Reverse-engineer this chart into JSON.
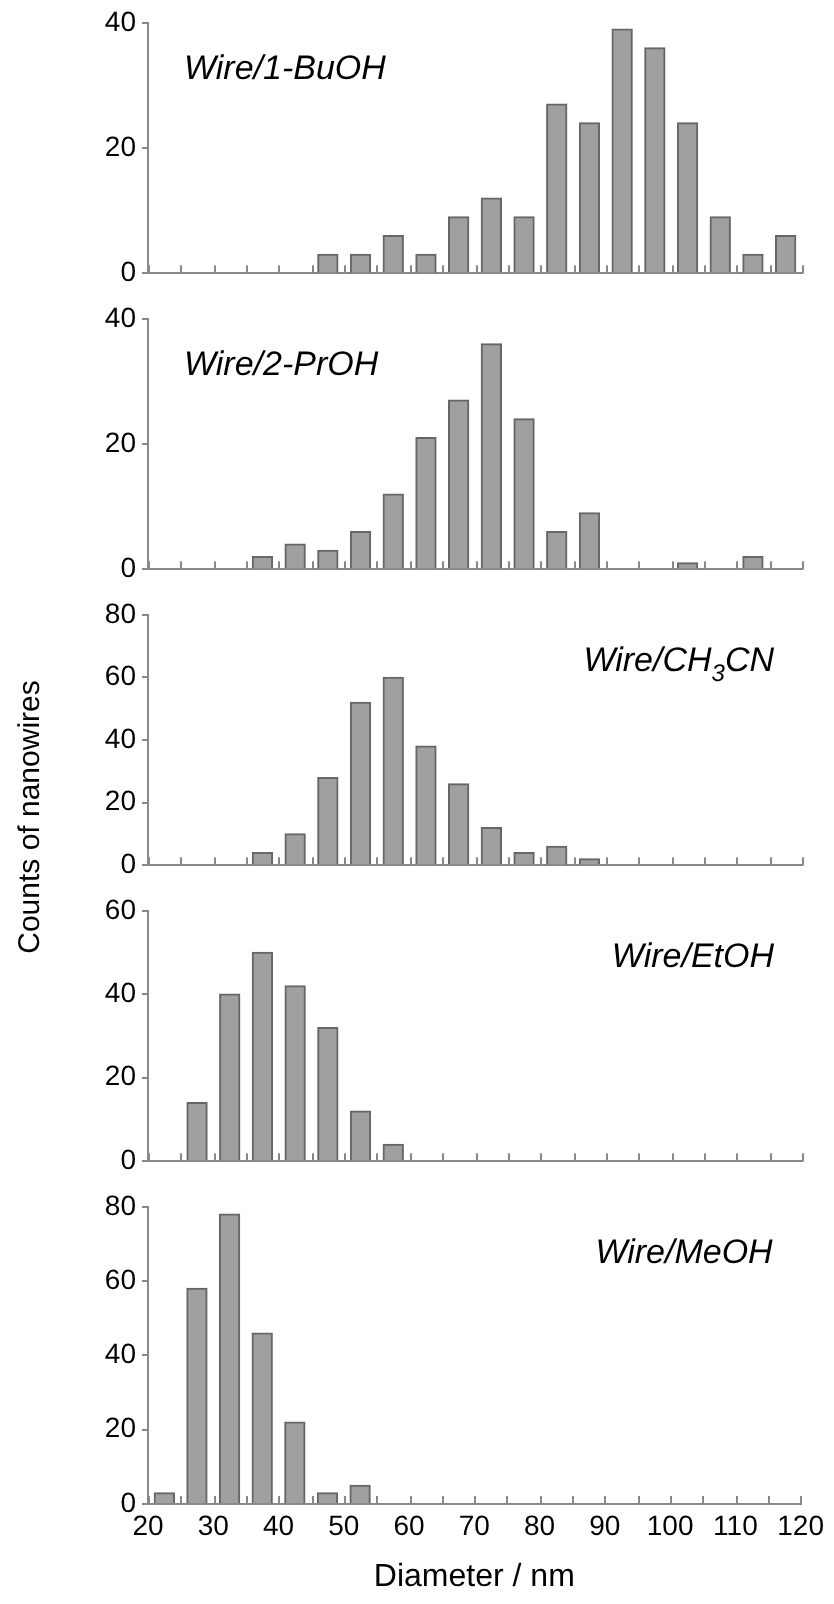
{
  "chart_data": [
    {
      "type": "histogram",
      "title": "Wire/1-BuOH",
      "bins": [
        20,
        25,
        30,
        35,
        40,
        45,
        50,
        55,
        60,
        65,
        70,
        75,
        80,
        85,
        90,
        95,
        100,
        105,
        110,
        115,
        120
      ],
      "values": [
        0,
        0,
        0,
        0,
        0,
        3,
        3,
        6,
        3,
        9,
        12,
        9,
        27,
        24,
        39,
        36,
        24,
        9,
        3,
        6
      ],
      "color": "#a0a0a0",
      "xlim": [
        20,
        120
      ],
      "xticks": [
        20,
        {
          "value": 25,
          "label": null
        },
        30,
        {
          "value": 35,
          "label": null
        },
        40,
        {
          "value": 45,
          "label": null
        },
        50,
        {
          "value": 55,
          "label": null
        },
        60,
        {
          "value": 65,
          "label": null
        },
        70,
        {
          "value": 75,
          "label": null
        },
        80,
        {
          "value": 85,
          "label": null
        },
        90,
        {
          "value": 95,
          "label": null
        },
        100,
        {
          "value": 105,
          "label": null
        },
        110,
        {
          "value": 115,
          "label": null
        },
        120
      ],
      "ylim": [
        0,
        40
      ],
      "yticks": [
        0,
        20,
        40
      ],
      "grid": false,
      "tick_labels": "y"
    },
    {
      "type": "histogram",
      "title": "Wire/2-PrOH",
      "bins": [
        20,
        25,
        30,
        35,
        40,
        45,
        50,
        55,
        60,
        65,
        70,
        75,
        80,
        85,
        90,
        95,
        100,
        105,
        110,
        115,
        120
      ],
      "values": [
        0,
        0,
        0,
        2,
        4,
        3,
        6,
        12,
        21,
        27,
        36,
        24,
        6,
        9,
        0,
        0,
        1,
        0,
        2,
        0
      ],
      "color": "#a0a0a0",
      "xlim": [
        20,
        120
      ],
      "xticks": [
        20,
        {
          "value": 25,
          "label": null
        },
        30,
        {
          "value": 35,
          "label": null
        },
        40,
        {
          "value": 45,
          "label": null
        },
        50,
        {
          "value": 55,
          "label": null
        },
        60,
        {
          "value": 65,
          "label": null
        },
        70,
        {
          "value": 75,
          "label": null
        },
        80,
        {
          "value": 85,
          "label": null
        },
        90,
        {
          "value": 95,
          "label": null
        },
        100,
        {
          "value": 105,
          "label": null
        },
        110,
        {
          "value": 115,
          "label": null
        },
        120
      ],
      "ylim": [
        0,
        40
      ],
      "yticks": [
        0,
        20,
        40
      ],
      "grid": false,
      "tick_labels": "y"
    },
    {
      "type": "histogram",
      "title": "Wire/CH$_{3}$CN",
      "ylabel": "Counts of nanowires",
      "bins": [
        20,
        25,
        30,
        35,
        40,
        45,
        50,
        55,
        60,
        65,
        70,
        75,
        80,
        85,
        90,
        95,
        100,
        105,
        110,
        115,
        120
      ],
      "values": [
        0,
        0,
        0,
        4,
        10,
        28,
        52,
        60,
        38,
        26,
        12,
        4,
        6,
        2,
        0,
        0,
        0,
        0,
        0,
        0
      ],
      "color": "#a0a0a0",
      "xlim": [
        20,
        120
      ],
      "xticks": [
        20,
        {
          "value": 25,
          "label": null
        },
        30,
        {
          "value": 35,
          "label": null
        },
        40,
        {
          "value": 45,
          "label": null
        },
        50,
        {
          "value": 55,
          "label": null
        },
        60,
        {
          "value": 65,
          "label": null
        },
        70,
        {
          "value": 75,
          "label": null
        },
        80,
        {
          "value": 85,
          "label": null
        },
        90,
        {
          "value": 95,
          "label": null
        },
        100,
        {
          "value": 105,
          "label": null
        },
        110,
        {
          "value": 115,
          "label": null
        },
        120
      ],
      "ylim": [
        0,
        80
      ],
      "yticks": [
        0,
        20,
        40,
        60,
        80
      ],
      "grid": false,
      "tick_labels": "y"
    },
    {
      "type": "histogram",
      "title": "Wire/EtOH",
      "bins": [
        20,
        25,
        30,
        35,
        40,
        45,
        50,
        55,
        60,
        65,
        70,
        75,
        80,
        85,
        90,
        95,
        100,
        105,
        110,
        115,
        120
      ],
      "values": [
        0,
        14,
        40,
        50,
        42,
        32,
        12,
        4,
        0,
        0,
        0,
        0,
        0,
        0,
        0,
        0,
        0,
        0,
        0,
        0
      ],
      "color": "#a0a0a0",
      "xlim": [
        20,
        120
      ],
      "xticks": [
        20,
        {
          "value": 25,
          "label": null
        },
        30,
        {
          "value": 35,
          "label": null
        },
        40,
        {
          "value": 45,
          "label": null
        },
        50,
        {
          "value": 55,
          "label": null
        },
        60,
        {
          "value": 65,
          "label": null
        },
        70,
        {
          "value": 75,
          "label": null
        },
        80,
        {
          "value": 85,
          "label": null
        },
        90,
        {
          "value": 95,
          "label": null
        },
        100,
        {
          "value": 105,
          "label": null
        },
        110,
        {
          "value": 115,
          "label": null
        },
        120
      ],
      "ylim": [
        0,
        60
      ],
      "yticks": [
        0,
        20,
        40,
        60
      ],
      "grid": false,
      "tick_labels": "y"
    },
    {
      "type": "histogram",
      "title": "Wire/MeOH",
      "xlabel": "Diameter / nm",
      "bins": [
        20,
        25,
        30,
        35,
        40,
        45,
        50,
        55,
        60,
        65,
        70,
        75,
        80,
        85,
        90,
        95,
        100,
        105,
        110,
        115,
        120
      ],
      "values": [
        3,
        58,
        78,
        46,
        22,
        3,
        5,
        0,
        0,
        0,
        0,
        0,
        0,
        0,
        0,
        0,
        0,
        0,
        0,
        0
      ],
      "color": "#a0a0a0",
      "xlim": [
        20,
        120
      ],
      "xticks": [
        20,
        {
          "value": 25,
          "label": null
        },
        30,
        {
          "value": 35,
          "label": null
        },
        40,
        {
          "value": 45,
          "label": null
        },
        50,
        {
          "value": 55,
          "label": null
        },
        60,
        {
          "value": 65,
          "label": null
        },
        70,
        {
          "value": 75,
          "label": null
        },
        80,
        {
          "value": 85,
          "label": null
        },
        90,
        {
          "value": 95,
          "label": null
        },
        100,
        {
          "value": 105,
          "label": null
        },
        110,
        {
          "value": 115,
          "label": null
        },
        120
      ],
      "ylim": [
        0,
        80
      ],
      "yticks": [
        0,
        20,
        40,
        60,
        80
      ],
      "grid": false
    }
  ]
}
